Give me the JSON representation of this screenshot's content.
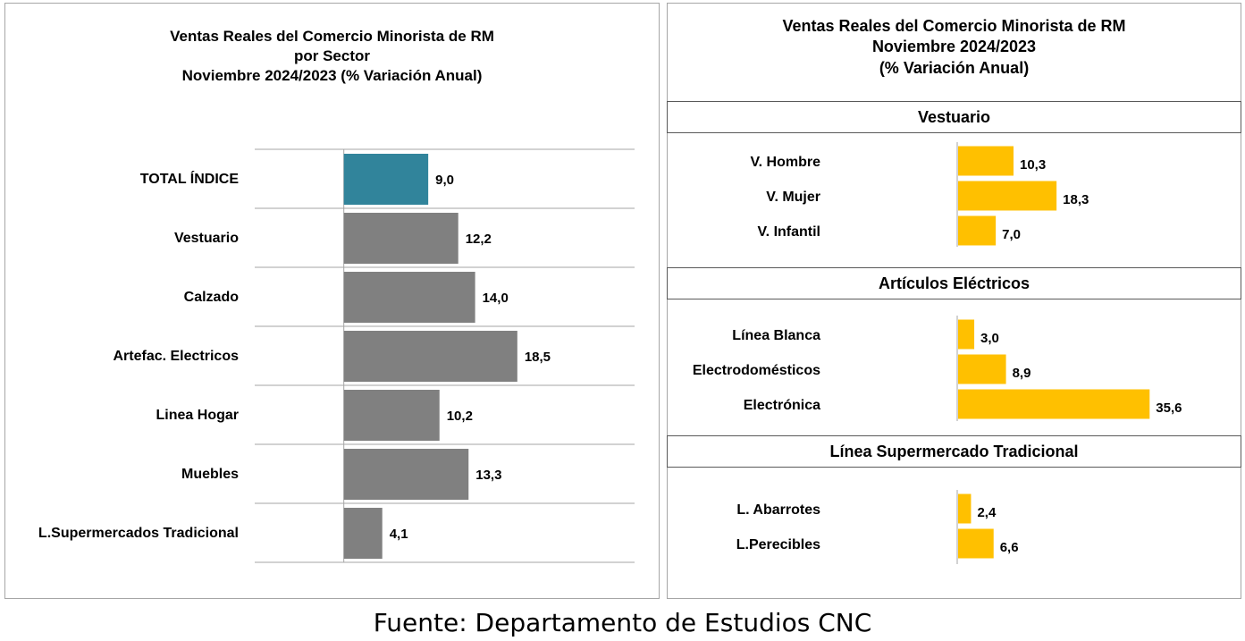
{
  "chart_data": [
    {
      "type": "bar",
      "orientation": "horizontal",
      "title_lines": [
        "Ventas Reales del Comercio Minorista de RM",
        "por Sector",
        "Noviembre 2024/2023 (% Variación Anual)"
      ],
      "categories": [
        "TOTAL ÍNDICE",
        "Vestuario",
        "Calzado",
        "Artefac. Electricos",
        "Linea Hogar",
        "Muebles",
        "L.Supermercados Tradicional"
      ],
      "values": [
        9.0,
        12.2,
        14.0,
        18.5,
        10.2,
        13.3,
        4.1
      ],
      "value_labels": [
        "9,0",
        "12,2",
        "14,0",
        "18,5",
        "10,2",
        "13,3",
        "4,1"
      ],
      "colors": [
        "#31849b",
        "#808080",
        "#808080",
        "#808080",
        "#808080",
        "#808080",
        "#808080"
      ],
      "xlim": [
        -9.5,
        31
      ],
      "grid": "horizontal row separators"
    },
    {
      "type": "bar",
      "orientation": "horizontal",
      "title_lines": [
        "Ventas Reales del Comercio Minorista de RM",
        "Noviembre 2024/2023",
        "(% Variación Anual)"
      ],
      "color": "#ffc000",
      "xlim": [
        0,
        52
      ],
      "groups": [
        {
          "name": "Vestuario",
          "categories": [
            "V. Hombre",
            "V. Mujer",
            "V. Infantil"
          ],
          "values": [
            10.3,
            18.3,
            7.0
          ],
          "value_labels": [
            "10,3",
            "18,3",
            "7,0"
          ]
        },
        {
          "name": "Artículos Eléctricos",
          "categories": [
            "Línea Blanca",
            "Electrodomésticos",
            "Electrónica"
          ],
          "values": [
            3.0,
            8.9,
            35.6
          ],
          "value_labels": [
            "3,0",
            "8,9",
            "35,6"
          ]
        },
        {
          "name": "Línea Supermercado Tradicional",
          "categories": [
            "L. Abarrotes",
            "L.Perecibles"
          ],
          "values": [
            2.4,
            6.6
          ],
          "value_labels": [
            "2,4",
            "6,6"
          ]
        }
      ]
    }
  ],
  "footer": {
    "source": "Fuente: Departamento de Estudios CNC"
  },
  "colors": {
    "highlight": "#31849b",
    "neutral": "#808080",
    "accent": "#ffc000",
    "grid": "#a6a6a6"
  }
}
